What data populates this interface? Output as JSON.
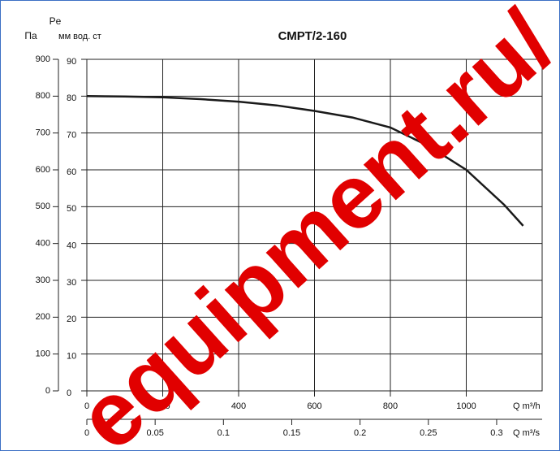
{
  "chart_data": {
    "type": "line",
    "title": "СМРТ/2-160",
    "y_label_top": "Pe",
    "y_label": "Па",
    "y2_label": "мм вод. ст",
    "x_label": "Q m³/h",
    "x2_label": "Q m³/s",
    "x": [
      0,
      100,
      200,
      300,
      400,
      500,
      600,
      700,
      800,
      900,
      1000,
      1100,
      1150
    ],
    "series": [
      {
        "color": "#1a1a1a",
        "values": [
          800,
          799,
          797,
          792,
          785,
          775,
          760,
          742,
          715,
          665,
          600,
          505,
          448
        ]
      }
    ],
    "xlim": [
      0,
      1200
    ],
    "xticks": [
      0,
      200,
      400,
      600,
      800,
      1000
    ],
    "x2lim": [
      0,
      0.3333
    ],
    "x2ticks": [
      0,
      0.05,
      0.1,
      0.15,
      0.2,
      0.25,
      0.3
    ],
    "ylim": [
      0,
      900
    ],
    "yticks": [
      0,
      100,
      200,
      300,
      400,
      500,
      600,
      700,
      800,
      900
    ],
    "y2lim": [
      0,
      90
    ],
    "y2ticks": [
      0,
      10,
      20,
      30,
      40,
      50,
      60,
      70,
      80,
      90
    ],
    "grid": true,
    "watermark": "equipment.ru/"
  }
}
